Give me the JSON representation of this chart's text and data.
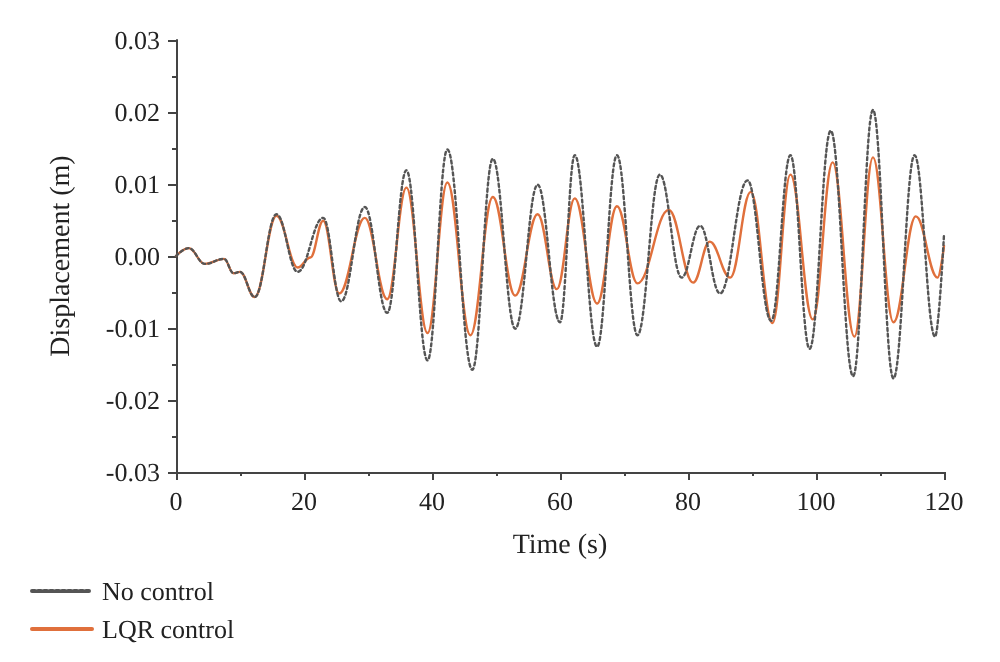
{
  "chart_data": {
    "type": "line",
    "xlabel": "Time (s)",
    "ylabel": "Displacement (m)",
    "xlim": [
      0,
      120
    ],
    "xticks": [
      0,
      20,
      40,
      60,
      80,
      100,
      120
    ],
    "ylim": [
      -0.03,
      0.03
    ],
    "yticks": [
      -0.03,
      -0.02,
      -0.01,
      {
        "value": 0,
        "label": "0.00"
      },
      0.01,
      0.02,
      0.03
    ],
    "grid": false,
    "legend": "bottom left",
    "marker": "none",
    "series": [
      {
        "name": "No control",
        "color": "#555555",
        "line_style": "dotted",
        "x": [
          0,
          2,
          4.5,
          7.5,
          9,
          10,
          12.3,
          15.7,
          19,
          23,
          25.8,
          29.5,
          33,
          36,
          39.3,
          42.4,
          46.3,
          49.5,
          53,
          56.5,
          60,
          62.3,
          65.8,
          68.9,
          72.1,
          75.6,
          79,
          81.9,
          85,
          89.3,
          93,
          96,
          99,
          102.3,
          105.8,
          108.9,
          112.1,
          115.4,
          118.6,
          120
        ],
        "values": [
          0,
          0.0011,
          -0.0011,
          -0.0004,
          -0.0024,
          -0.0022,
          -0.0057,
          0.0058,
          -0.0022,
          0.0053,
          -0.0063,
          0.0068,
          -0.0079,
          0.0119,
          -0.0145,
          0.0148,
          -0.0158,
          0.0135,
          -0.0101,
          0.0099,
          -0.0092,
          0.014,
          -0.0126,
          0.014,
          -0.011,
          0.0113,
          -0.003,
          0.0042,
          -0.0052,
          0.0105,
          -0.009,
          0.014,
          -0.0129,
          0.0174,
          -0.0167,
          0.0203,
          -0.017,
          0.014,
          -0.0112,
          0.003
        ]
      },
      {
        "name": "LQR control",
        "color": "#e0703c",
        "line_style": "solid",
        "x": [
          0,
          2,
          4.5,
          7.5,
          9,
          10,
          12.3,
          15.7,
          19,
          21,
          23,
          25.5,
          29.5,
          33,
          36,
          39.3,
          42.4,
          46,
          49.5,
          53,
          56.5,
          59.5,
          62.3,
          65.8,
          68.9,
          72.1,
          77,
          80.8,
          83.4,
          86.6,
          89.8,
          93.2,
          96,
          99.5,
          102.6,
          106,
          108.9,
          112.1,
          115.6,
          119,
          120
        ],
        "values": [
          0,
          0.0011,
          -0.0011,
          -0.0004,
          -0.0024,
          -0.0022,
          -0.0057,
          0.0056,
          -0.0016,
          -0.0002,
          0.0049,
          -0.0052,
          0.0053,
          -0.006,
          0.0095,
          -0.0107,
          0.0102,
          -0.011,
          0.0082,
          -0.0055,
          0.0058,
          -0.0046,
          0.008,
          -0.0066,
          0.0069,
          -0.0038,
          0.0064,
          -0.0037,
          0.002,
          -0.003,
          0.0089,
          -0.0093,
          0.0113,
          -0.0088,
          0.013,
          -0.0112,
          0.0137,
          -0.0092,
          0.0055,
          -0.003,
          0.0014
        ]
      }
    ]
  }
}
